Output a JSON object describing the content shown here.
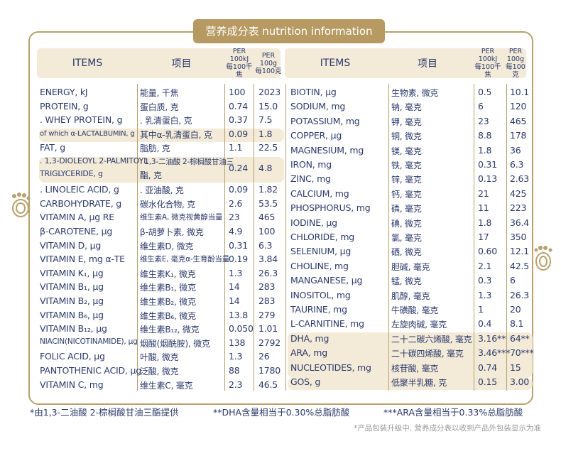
{
  "title": "营养成分表 nutrition information",
  "headers": {
    "items": "ITEMS",
    "xiangmu": "项目",
    "per100kj_1": "PER 100kJ",
    "per100kj_2": "每100千焦",
    "per100g_1": "PER 100g",
    "per100g_2": "每100克"
  },
  "left_rows": [
    {
      "en": "ENERGY, kJ",
      "cn": "能量, 千焦",
      "kj": "100",
      "g": "2023"
    },
    {
      "en": "PROTEIN, g",
      "cn": "蛋白质, 克",
      "kj": "0.74",
      "g": "15.0"
    },
    {
      "en": ". WHEY PROTEIN, g",
      "cn": ". 乳清蛋白, 克",
      "kj": "0.37",
      "g": "7.5"
    },
    {
      "en": "of which α-LACTALBUMIN, g",
      "cn": "其中α-乳清蛋白, 克",
      "kj": "0.09",
      "g": "1.8"
    },
    {
      "en": "FAT, g",
      "cn": "脂肪, 克",
      "kj": "1.1",
      "g": "22.5"
    },
    {
      "en": ". 1,3-DIOLEOYL 2-PALMITOYL",
      "en2": "TRIGLYCERIDE, g",
      "cn": ". 1,3-二油酸 2-棕榈酸甘油三",
      "cn2": "酯, 克",
      "kj": "0.24",
      "g": "4.8"
    },
    {
      "en": ". LINOLEIC ACID, g",
      "cn": ". 亚油酸, 克",
      "kj": "0.09",
      "g": "1.82"
    },
    {
      "en": "CARBOHYDRATE, g",
      "cn": "碳水化合物, 克",
      "kj": "2.6",
      "g": "53.5"
    },
    {
      "en": "VITAMIN A, μg RE",
      "cn": "维生素A, 微克视黄醇当量",
      "kj": "23",
      "g": "465"
    },
    {
      "en": "β-CAROTENE, μg",
      "cn": "β-胡萝卜素, 微克",
      "kj": "4.9",
      "g": "100"
    },
    {
      "en": "VITAMIN D, μg",
      "cn": "维生素D, 微克",
      "kj": "0.31",
      "g": "6.3"
    },
    {
      "en": "VITAMIN E, mg α-TE",
      "cn": "维生素E, 毫克α-生育酚当量",
      "kj": "0.19",
      "g": "3.84"
    },
    {
      "en": "VITAMIN K₁, μg",
      "cn": "维生素K₁, 微克",
      "kj": "1.3",
      "g": "26.3"
    },
    {
      "en": "VITAMIN B₁, μg",
      "cn": "维生素B₁, 微克",
      "kj": "14",
      "g": "283"
    },
    {
      "en": "VITAMIN B₂, μg",
      "cn": "维生素B₂, 微克",
      "kj": "14",
      "g": "283"
    },
    {
      "en": "VITAMIN B₆, μg",
      "cn": "维生素B₆, 微克",
      "kj": "13.8",
      "g": "279"
    },
    {
      "en": "VITAMIN B₁₂, μg",
      "cn": "维生素B₁₂, 微克",
      "kj": "0.050",
      "g": "1.01"
    },
    {
      "en": "NIACIN(NICOTINAMIDE), μg",
      "cn": "烟酸(烟酰胺), 微克",
      "kj": "138",
      "g": "2792"
    },
    {
      "en": "FOLIC ACID, μg",
      "cn": "叶酸, 微克",
      "kj": "1.3",
      "g": "26"
    },
    {
      "en": "PANTOTHENIC ACID, μg",
      "cn": "泛酸, 微克",
      "kj": "88",
      "g": "1780"
    },
    {
      "en": "VITAMIN C, mg",
      "cn": "维生素C, 毫克",
      "kj": "2.3",
      "g": "46.5"
    }
  ],
  "right_rows": [
    {
      "en": "BIOTIN, μg",
      "cn": "生物素, 微克",
      "kj": "0.5",
      "g": "10.1"
    },
    {
      "en": "SODIUM, mg",
      "cn": "钠, 毫克",
      "kj": "6",
      "g": "120"
    },
    {
      "en": "POTASSIUM, mg",
      "cn": "钾, 毫克",
      "kj": "23",
      "g": "465"
    },
    {
      "en": "COPPER, μg",
      "cn": "铜, 微克",
      "kj": "8.8",
      "g": "178"
    },
    {
      "en": "MAGNESIUM, mg",
      "cn": "镁, 毫克",
      "kj": "1.8",
      "g": "36"
    },
    {
      "en": "IRON, mg",
      "cn": "铁, 毫克",
      "kj": "0.31",
      "g": "6.3"
    },
    {
      "en": "ZINC, mg",
      "cn": "锌, 毫克",
      "kj": "0.13",
      "g": "2.63"
    },
    {
      "en": "CALCIUM, mg",
      "cn": "钙, 毫克",
      "kj": "21",
      "g": "425"
    },
    {
      "en": "PHOSPHORUS, mg",
      "cn": "磷, 毫克",
      "kj": "11",
      "g": "223"
    },
    {
      "en": "IODINE, μg",
      "cn": "碘, 微克",
      "kj": "1.8",
      "g": "36.4"
    },
    {
      "en": "CHLORIDE, mg",
      "cn": "氯, 毫克",
      "kj": "17",
      "g": "350"
    },
    {
      "en": "SELENIUM, μg",
      "cn": "硒, 微克",
      "kj": "0.60",
      "g": "12.1"
    },
    {
      "en": "CHOLINE, mg",
      "cn": "胆碱, 毫克",
      "kj": "2.1",
      "g": "42.5"
    },
    {
      "en": "MANGANESE, μg",
      "cn": "锰, 微克",
      "kj": "0.3",
      "g": "6"
    },
    {
      "en": "INOSITOL, mg",
      "cn": "肌醇, 毫克",
      "kj": "1.3",
      "g": "26.3"
    },
    {
      "en": "TAURINE, mg",
      "cn": "牛磺酸, 毫克",
      "kj": "1",
      "g": "20"
    },
    {
      "en": "L-CARNITINE, mg",
      "cn": "左旋肉碱, 毫克",
      "kj": "0.4",
      "g": "8.1"
    },
    {
      "en": "DHA, mg",
      "cn": "二十二碳六烯酸, 毫克",
      "kj": "3.16**",
      "g": "64**"
    },
    {
      "en": "ARA, mg",
      "cn": "二十碳四烯酸, 毫克",
      "kj": "3.46***",
      "g": "70***"
    },
    {
      "en": "NUCLEOTIDES, mg",
      "cn": "核苷酸, 毫克",
      "kj": "0.74",
      "g": "15"
    },
    {
      "en": "GOS, g",
      "cn": "低聚半乳糖, 克",
      "kj": "0.15",
      "g": "3.00"
    }
  ],
  "footnotes": {
    "f1": "*由1,3-二油酸 2-棕榈酸甘油三酯提供",
    "f2": "**DHA含量相当于0.30%总脂肪酸",
    "f3": "***ARA含量相当于0.33%总脂肪酸",
    "disclaimer": "*产品包装升级中, 营养成分表以收到产品外包装显示为准"
  }
}
